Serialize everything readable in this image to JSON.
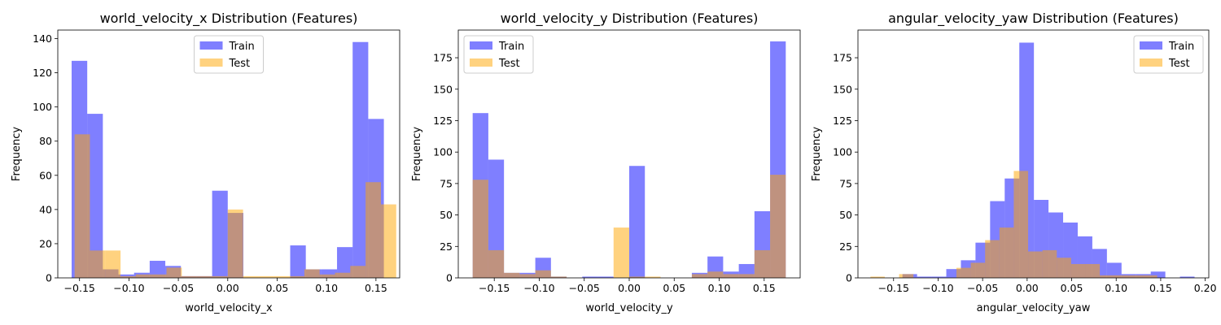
{
  "colors": {
    "train": "#0000ff",
    "test": "#ffa500",
    "alpha": 0.5
  },
  "legend": {
    "placements": [
      "upper-center",
      "upper-left",
      "upper-right"
    ]
  },
  "chart_data": [
    {
      "type": "histogram",
      "title": "world_velocity_x Distribution (Features)",
      "xlabel": "world_velocity_x",
      "ylabel": "Frequency",
      "xlim": [
        -0.172,
        0.174
      ],
      "ylim": [
        0,
        145
      ],
      "xticks": [
        -0.15,
        -0.1,
        -0.05,
        0.0,
        0.05,
        0.1,
        0.15
      ],
      "xtick_labels": [
        "−0.15",
        "−0.10",
        "−0.05",
        "0.00",
        "0.05",
        "0.10",
        "0.15"
      ],
      "yticks": [
        0,
        20,
        40,
        60,
        80,
        100,
        120,
        140
      ],
      "ytick_labels": [
        "0",
        "20",
        "40",
        "60",
        "80",
        "100",
        "120",
        "140"
      ],
      "legend_position": "upper-center",
      "series": [
        {
          "name": "Train",
          "bins_start": -0.158,
          "bin_width": 0.0158,
          "values": [
            127,
            96,
            5,
            2,
            3,
            10,
            7,
            1,
            1,
            51,
            38,
            0,
            0,
            0,
            19,
            5,
            5,
            18,
            138,
            93
          ]
        },
        {
          "name": "Test",
          "bins_start": -0.155,
          "bin_width": 0.0155,
          "values": [
            84,
            16,
            16,
            1,
            2,
            2,
            6,
            1,
            1,
            1,
            40,
            1,
            1,
            1,
            1,
            5,
            2,
            3,
            7,
            56,
            43
          ]
        }
      ]
    },
    {
      "type": "histogram",
      "title": "world_velocity_y Distribution (Features)",
      "xlabel": "world_velocity_y",
      "ylabel": "Frequency",
      "xlim": [
        -0.19,
        0.19
      ],
      "ylim": [
        0,
        197
      ],
      "xticks": [
        -0.15,
        -0.1,
        -0.05,
        0.0,
        0.05,
        0.1,
        0.15
      ],
      "xtick_labels": [
        "−0.15",
        "−0.10",
        "−0.05",
        "0.00",
        "0.05",
        "0.10",
        "0.15"
      ],
      "yticks": [
        0,
        25,
        50,
        75,
        100,
        125,
        150,
        175
      ],
      "ytick_labels": [
        "0",
        "25",
        "50",
        "75",
        "100",
        "125",
        "150",
        "175"
      ],
      "legend_position": "upper-left",
      "series": [
        {
          "name": "Train",
          "bins_start": -0.174,
          "bin_width": 0.0174,
          "values": [
            131,
            94,
            4,
            4,
            16,
            1,
            0,
            1,
            1,
            0,
            89,
            0,
            0,
            0,
            4,
            17,
            5,
            11,
            53,
            188
          ]
        },
        {
          "name": "Test",
          "bins_start": -0.174,
          "bin_width": 0.0174,
          "values": [
            78,
            22,
            4,
            3,
            6,
            1,
            0,
            0,
            0,
            40,
            1,
            1,
            0,
            0,
            3,
            5,
            3,
            3,
            22,
            82
          ]
        }
      ]
    },
    {
      "type": "histogram",
      "title": "angular_velocity_yaw Distribution (Features)",
      "xlabel": "angular_velocity_yaw",
      "ylabel": "Frequency",
      "xlim": [
        -0.19,
        0.204
      ],
      "ylim": [
        0,
        197
      ],
      "xticks": [
        -0.15,
        -0.1,
        -0.05,
        0.0,
        0.05,
        0.1,
        0.15,
        0.2
      ],
      "xtick_labels": [
        "−0.15",
        "−0.10",
        "−0.05",
        "0.00",
        "0.05",
        "0.10",
        "0.15",
        "0.20"
      ],
      "yticks": [
        0,
        25,
        50,
        75,
        100,
        125,
        150,
        175
      ],
      "ytick_labels": [
        "0",
        "25",
        "50",
        "75",
        "100",
        "125",
        "150",
        "175"
      ],
      "legend_position": "upper-right",
      "series": [
        {
          "name": "Train",
          "bins_start": -0.14,
          "bin_width": 0.0164,
          "values": [
            3,
            1,
            1,
            7,
            14,
            28,
            61,
            79,
            187,
            62,
            52,
            44,
            33,
            23,
            12,
            3,
            3,
            5,
            0,
            1
          ]
        },
        {
          "name": "Test",
          "bins_start": -0.176,
          "bin_width": 0.0161,
          "values": [
            1,
            0,
            3,
            0,
            0,
            0,
            8,
            12,
            30,
            40,
            85,
            21,
            22,
            16,
            11,
            11,
            2,
            2,
            2,
            2
          ]
        }
      ]
    }
  ]
}
